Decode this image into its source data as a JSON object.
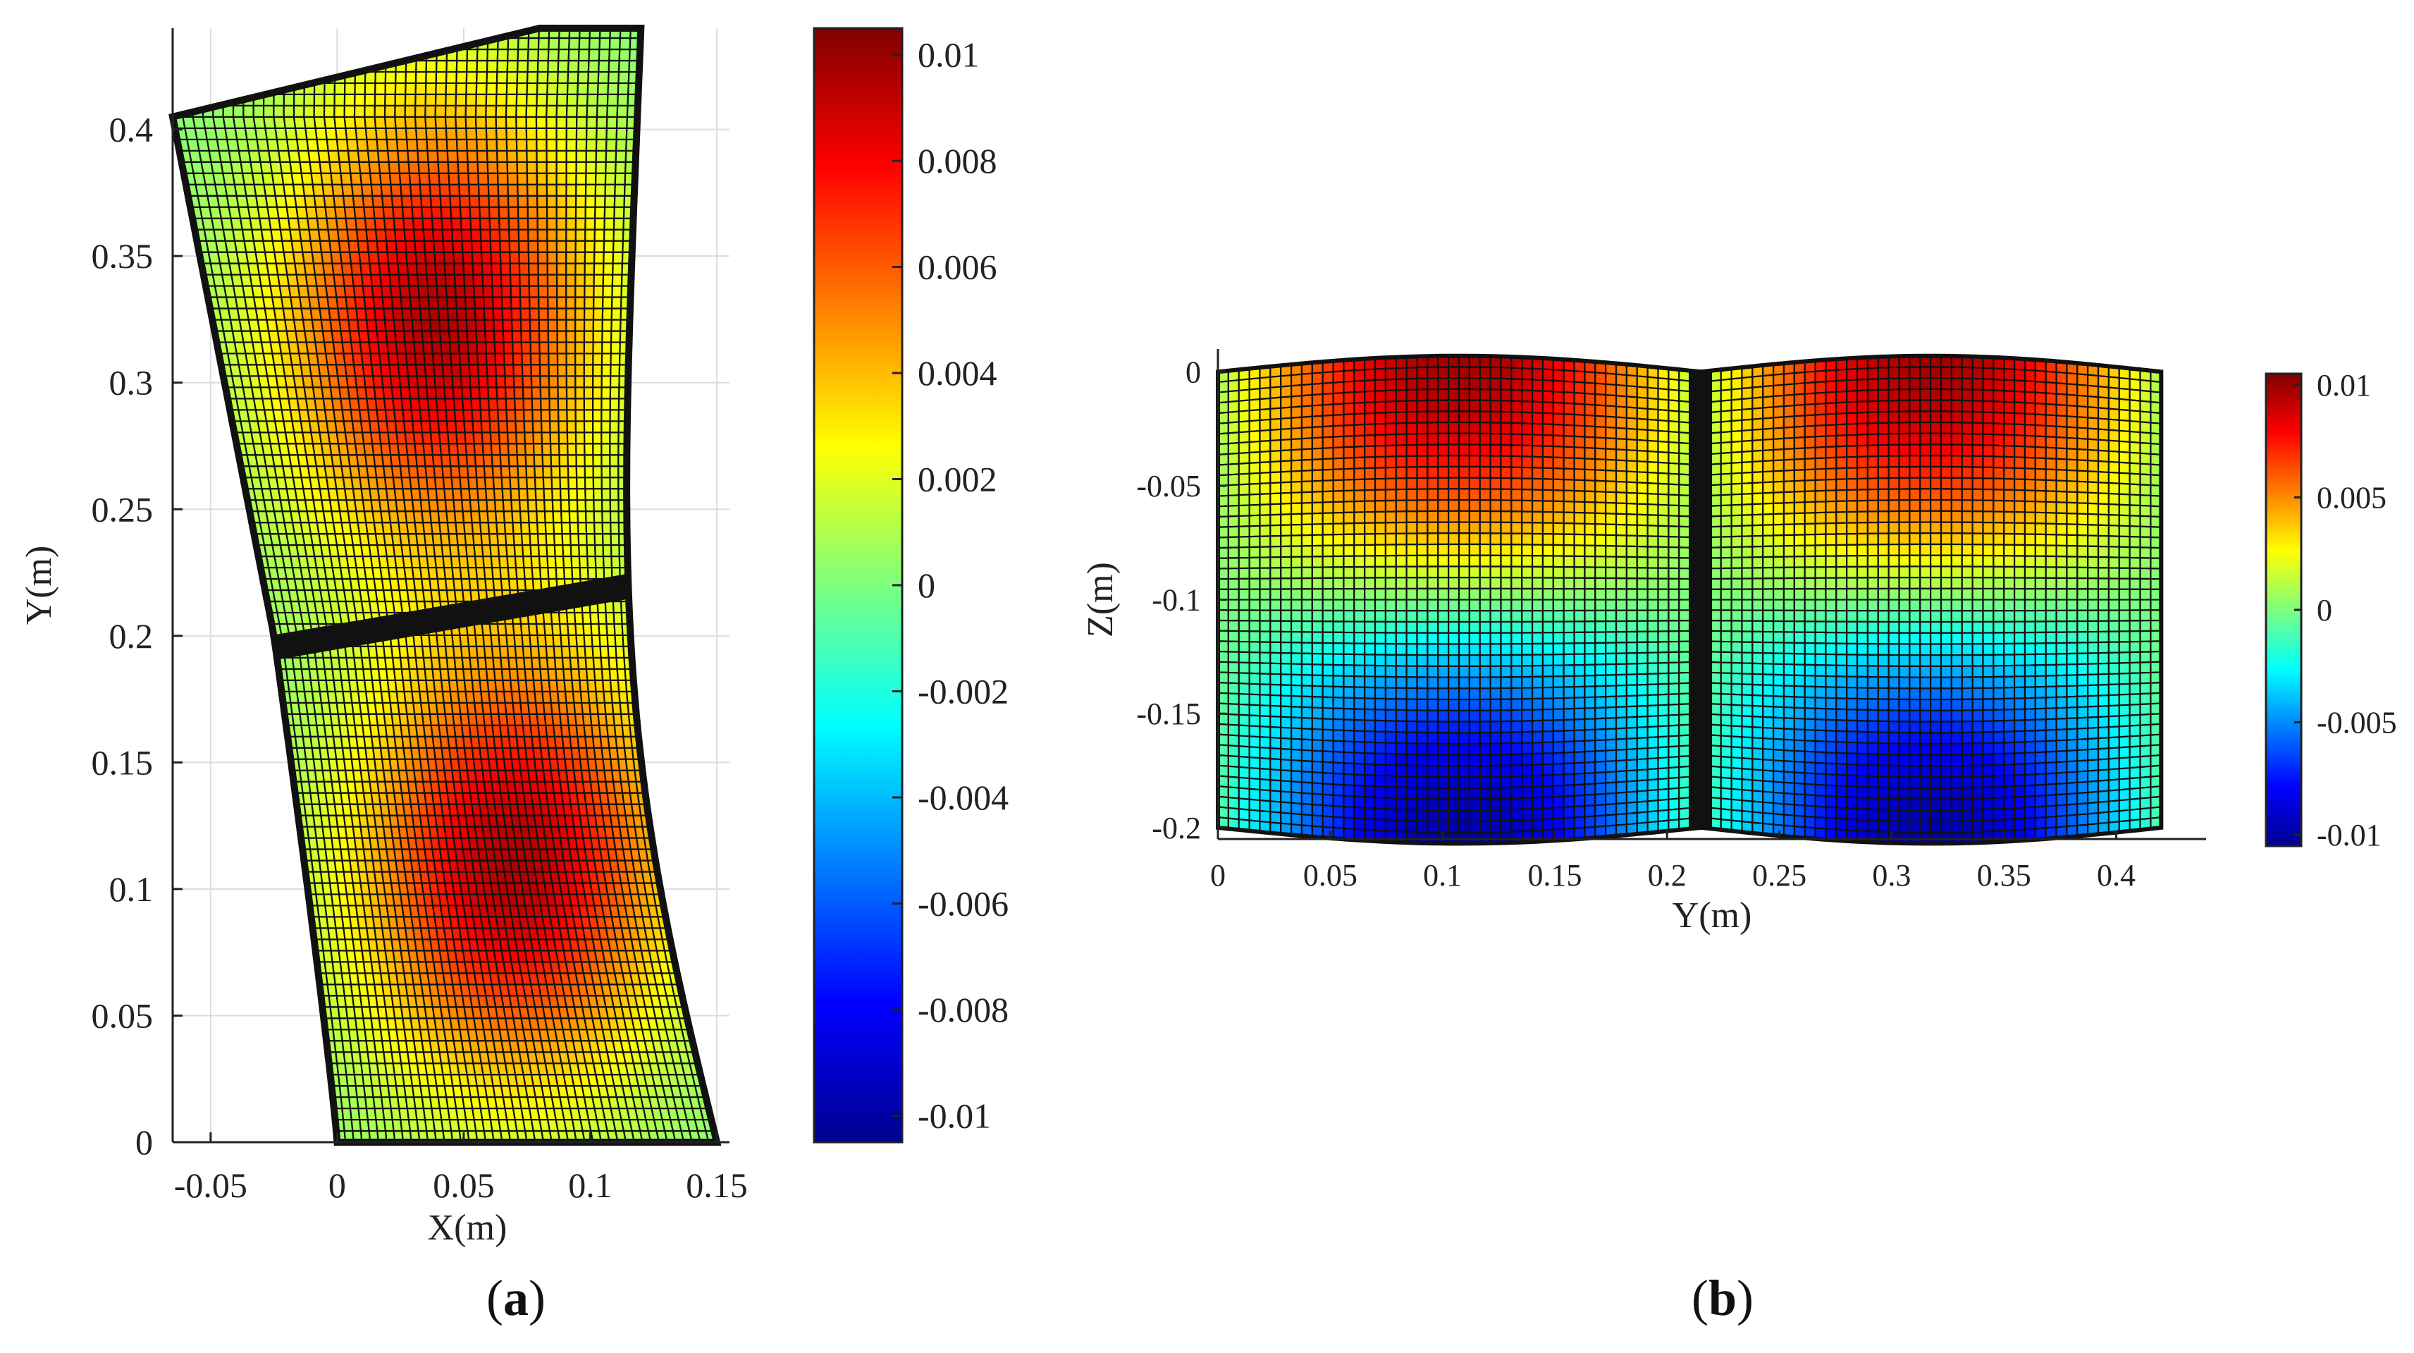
{
  "chart_data": [
    {
      "panel": "(a)",
      "panel_letter": "a",
      "type": "heatmap",
      "xlabel": "X(m)",
      "ylabel": "Y(m)",
      "xlim": [
        -0.065,
        0.155
      ],
      "ylim": [
        0,
        0.44
      ],
      "xticks": [
        -0.05,
        0,
        0.05,
        0.1,
        0.15
      ],
      "xtick_labels": [
        "-0.05",
        "0",
        "0.05",
        "0.1",
        "0.15"
      ],
      "yticks": [
        0,
        0.05,
        0.1,
        0.15,
        0.2,
        0.25,
        0.3,
        0.35,
        0.4
      ],
      "ytick_labels": [
        "0",
        "0.05",
        "0.1",
        "0.15",
        "0.2",
        "0.25",
        "0.3",
        "0.35",
        "0.4"
      ],
      "grid": true,
      "colorbar": {
        "range": [
          -0.0105,
          0.0105
        ],
        "ticks": [
          0.01,
          0.008,
          0.006,
          0.004,
          0.002,
          0,
          -0.002,
          -0.004,
          -0.006,
          -0.008,
          -0.01
        ],
        "tick_labels": [
          "0.01",
          "0.008",
          "0.006",
          "0.004",
          "0.002",
          "0",
          "-0.002",
          "-0.004",
          "-0.006",
          "-0.008",
          "-0.01"
        ],
        "colormap": "jet"
      },
      "peaks": [
        {
          "x": 0.04,
          "y": 0.325,
          "value": 0.0095
        },
        {
          "x": 0.07,
          "y": 0.11,
          "value": 0.0095
        }
      ]
    },
    {
      "panel": "(b)",
      "panel_letter": "b",
      "type": "heatmap",
      "xlabel": "Y(m)",
      "ylabel": "Z(m)",
      "xlim": [
        0,
        0.44
      ],
      "ylim": [
        -0.205,
        0.01
      ],
      "xticks": [
        0,
        0.05,
        0.1,
        0.15,
        0.2,
        0.25,
        0.3,
        0.35,
        0.4
      ],
      "xtick_labels": [
        "0",
        "0.05",
        "0.1",
        "0.15",
        "0.2",
        "0.25",
        "0.3",
        "0.35",
        "0.4"
      ],
      "yticks": [
        0,
        -0.05,
        -0.1,
        -0.15,
        -0.2
      ],
      "ytick_labels": [
        "0",
        "-0.05",
        "-0.1",
        "-0.15",
        "-0.2"
      ],
      "grid": false,
      "colorbar": {
        "range": [
          -0.0105,
          0.0105
        ],
        "ticks": [
          0.01,
          0.005,
          0,
          -0.005,
          -0.01
        ],
        "tick_labels": [
          "0.01",
          "0.005",
          "0",
          "-0.005",
          "-0.01"
        ],
        "colormap": "jet"
      },
      "peaks": [
        {
          "y": 0.1,
          "z": 0.0,
          "value": 0.0095
        },
        {
          "y": 0.32,
          "z": 0.0,
          "value": 0.0095
        }
      ]
    }
  ]
}
